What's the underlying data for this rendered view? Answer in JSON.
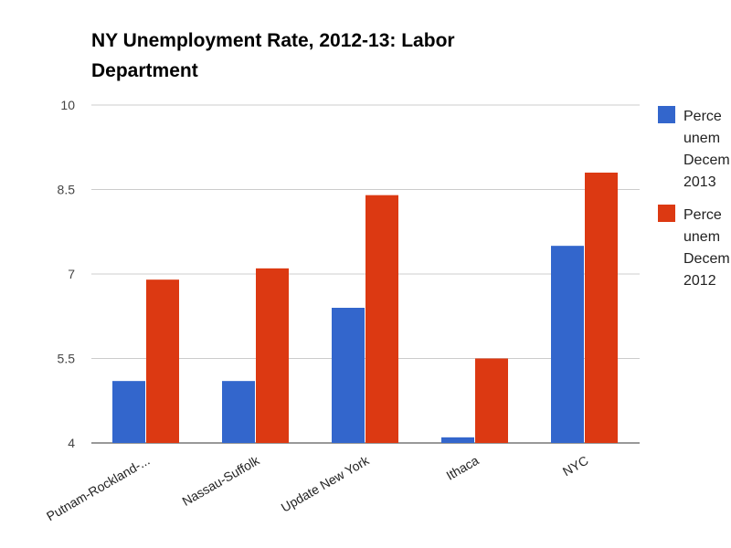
{
  "chart_data": {
    "type": "bar",
    "title": "NY Unemployment Rate, 2012-13: Labor Department",
    "categories": [
      "Putnam-Rockland-...",
      "Nassau-Suffolk",
      "Update New York",
      "Ithaca",
      "NYC"
    ],
    "series": [
      {
        "name": "Perce unem Decem 2013",
        "legend_lines": [
          "Perce",
          "unem",
          "Decem",
          "2013"
        ],
        "color": "#3366cc",
        "values": [
          5.1,
          5.1,
          6.4,
          4.1,
          7.5
        ]
      },
      {
        "name": "Perce unem Decem 2012",
        "legend_lines": [
          "Perce",
          "unem",
          "Decem",
          "2012"
        ],
        "color": "#dc3912",
        "values": [
          6.9,
          7.1,
          8.4,
          5.5,
          8.8
        ]
      }
    ],
    "ylim": [
      4,
      10
    ],
    "yticks": [
      "4",
      "5.5",
      "7",
      "8.5",
      "10"
    ],
    "grid": true,
    "legend_position": "right",
    "xlabel": "",
    "ylabel": ""
  }
}
